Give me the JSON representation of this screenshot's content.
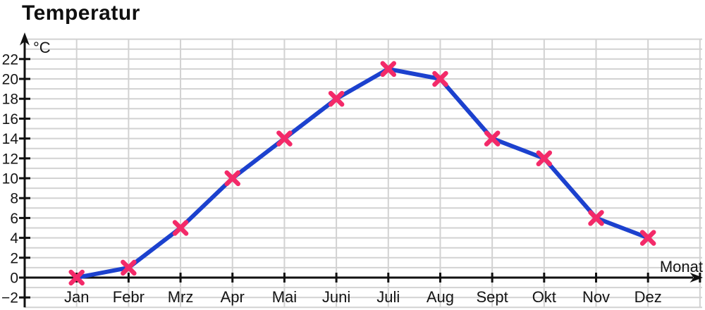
{
  "title": "Temperatur",
  "chart_data": {
    "type": "line",
    "title": "Temperatur",
    "xlabel": "Monat",
    "ylabel": "°C",
    "categories": [
      "Jan",
      "Febr",
      "Mrz",
      "Apr",
      "Mai",
      "Juni",
      "Juli",
      "Aug",
      "Sept",
      "Okt",
      "Nov",
      "Dez"
    ],
    "series": [
      {
        "name": "Temperatur",
        "values": [
          0,
          1,
          5,
          10,
          14,
          18,
          21,
          20,
          14,
          12,
          6,
          4
        ]
      }
    ],
    "y_tick_labels": [
      22,
      20,
      18,
      16,
      14,
      12,
      10,
      8,
      6,
      4,
      2,
      0,
      -2
    ],
    "y_tick_step": 2,
    "ylim": [
      -3,
      24
    ],
    "grid": "on",
    "grid_step_y": 1,
    "legend": "none",
    "marker": "x",
    "colors": {
      "line": "#1c41ce",
      "marker": "#f32a69",
      "grid": "#d2d2d2",
      "axis": "#111111",
      "text": "#151515"
    }
  }
}
